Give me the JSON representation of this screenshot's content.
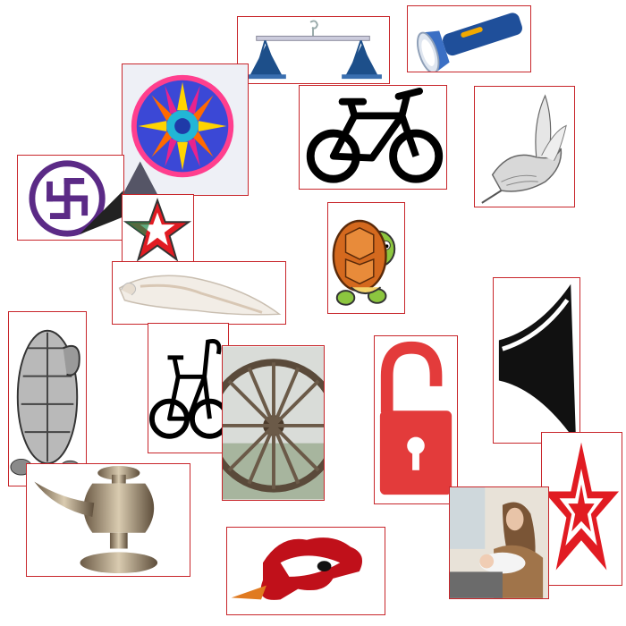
{
  "canvas": {
    "background": "#ffffff",
    "border_color": "#c8262b"
  },
  "tiles": [
    {
      "icon": "scales-icon"
    },
    {
      "icon": "flashlight-icon"
    },
    {
      "icon": "rangoli-wheel-icon"
    },
    {
      "icon": "bicycle-icon"
    },
    {
      "icon": "bird-sketch-icon"
    },
    {
      "icon": "swastika-circle-icon"
    },
    {
      "icon": "red-star-icon"
    },
    {
      "icon": "cartoon-turtle-icon"
    },
    {
      "icon": "conch-shell-icon"
    },
    {
      "icon": "tortoise-sketch-icon"
    },
    {
      "icon": "racing-bicycle-icon"
    },
    {
      "icon": "cart-wheel-icon"
    },
    {
      "icon": "open-padlock-icon"
    },
    {
      "icon": "trumpet-horn-icon"
    },
    {
      "icon": "outline-star-icon"
    },
    {
      "icon": "oil-lamp-icon"
    },
    {
      "icon": "rooster-head-icon"
    },
    {
      "icon": "mother-baby-photo-icon"
    }
  ],
  "colors": {
    "scales": "#1d4f8a",
    "flashlight": "#1f4f9a",
    "star_red": "#e11b22",
    "lock_red": "#e33b3b",
    "turtle_shell": "#d4691e",
    "turtle_skin": "#8cc63f"
  }
}
